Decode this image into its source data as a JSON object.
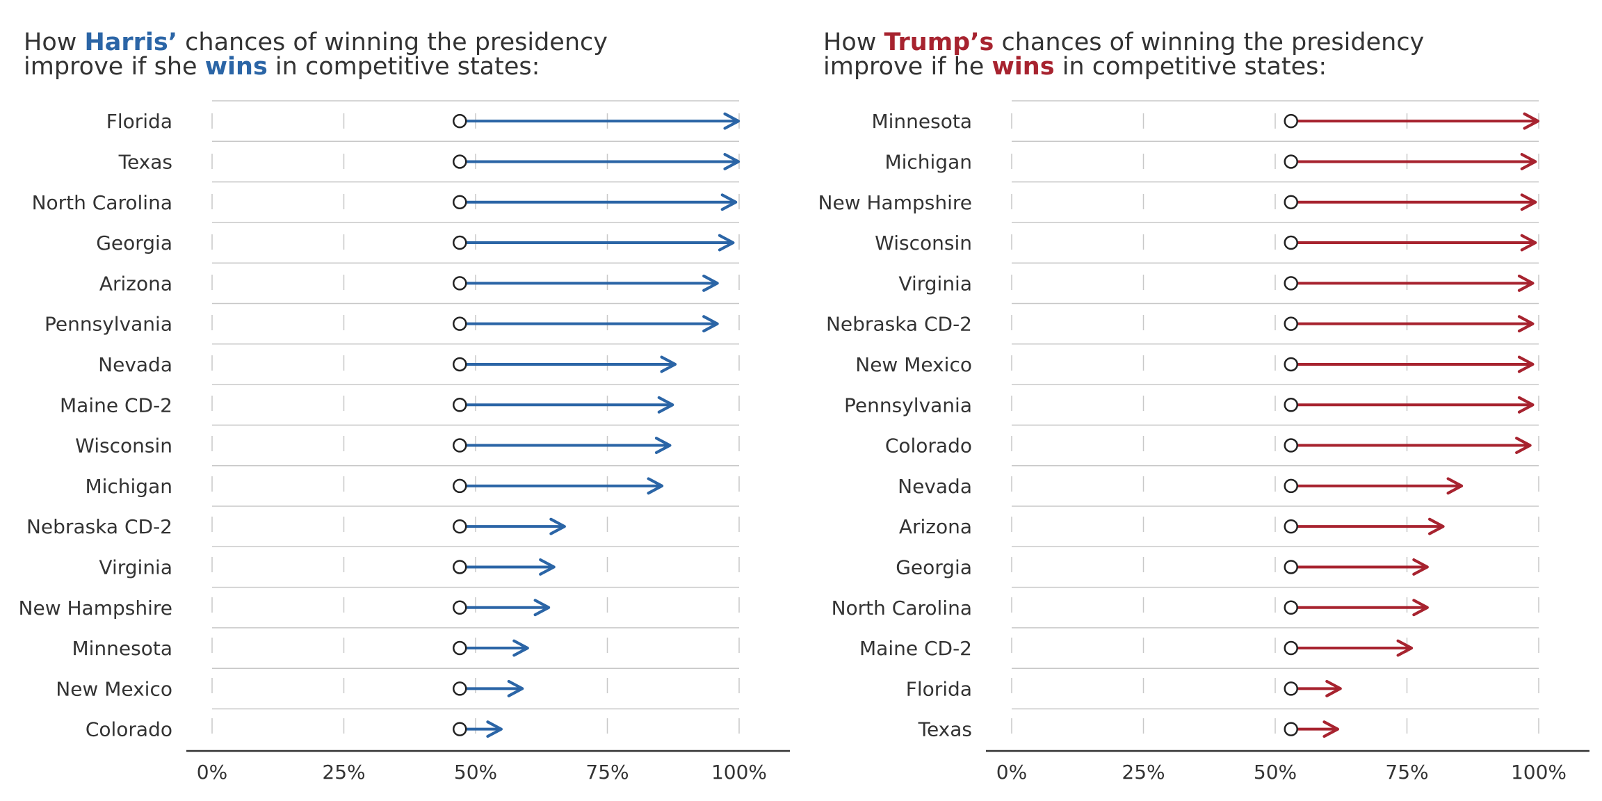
{
  "colors": {
    "harris": "#2b65a6",
    "trump": "#a7232f",
    "text": "#333333",
    "grid": "#c8c8c8"
  },
  "chart_data": [
    {
      "type": "arrow",
      "title": {
        "parts_line1": [
          {
            "text": "How ",
            "highlight": false
          },
          {
            "text": "Harris’",
            "highlight": true
          },
          {
            "text": " chances of winning the presidency",
            "highlight": false
          }
        ],
        "parts_line2": [
          {
            "text": "improve if she ",
            "highlight": false
          },
          {
            "text": "wins",
            "highlight": true
          },
          {
            "text": " in competitive states:",
            "highlight": false
          }
        ]
      },
      "color": "harris",
      "xlim": [
        0,
        100
      ],
      "xticks": [
        0,
        25,
        50,
        75,
        100
      ],
      "xtick_labels": [
        "0%",
        "25%",
        "50%",
        "75%",
        "100%"
      ],
      "baseline": 47,
      "states": [
        "Florida",
        "Texas",
        "North Carolina",
        "Georgia",
        "Arizona",
        "Pennsylvania",
        "Nevada",
        "Maine CD-2",
        "Wisconsin",
        "Michigan",
        "Nebraska CD-2",
        "Virginia",
        "New Hampshire",
        "Minnesota",
        "New Mexico",
        "Colorado"
      ],
      "values": [
        100,
        100,
        99.5,
        99,
        96,
        96,
        88,
        87.5,
        87,
        85.5,
        67,
        65,
        64,
        60,
        59,
        55
      ]
    },
    {
      "type": "arrow",
      "title": {
        "parts_line1": [
          {
            "text": "How ",
            "highlight": false
          },
          {
            "text": "Trump’s",
            "highlight": true
          },
          {
            "text": " chances of winning the presidency",
            "highlight": false
          }
        ],
        "parts_line2": [
          {
            "text": "improve if he ",
            "highlight": false
          },
          {
            "text": "wins",
            "highlight": true
          },
          {
            "text": " in competitive states:",
            "highlight": false
          }
        ]
      },
      "color": "trump",
      "xlim": [
        0,
        100
      ],
      "xticks": [
        0,
        25,
        50,
        75,
        100
      ],
      "xtick_labels": [
        "0%",
        "25%",
        "50%",
        "75%",
        "100%"
      ],
      "baseline": 53,
      "states": [
        "Minnesota",
        "Michigan",
        "New Hampshire",
        "Wisconsin",
        "Virginia",
        "Nebraska CD-2",
        "New Mexico",
        "Pennsylvania",
        "Colorado",
        "Nevada",
        "Arizona",
        "Georgia",
        "North Carolina",
        "Maine CD-2",
        "Florida",
        "Texas"
      ],
      "values": [
        100,
        99.5,
        99.5,
        99.5,
        99,
        99,
        99,
        99,
        98.5,
        85.5,
        82,
        79,
        79,
        76,
        62.5,
        62
      ]
    }
  ]
}
